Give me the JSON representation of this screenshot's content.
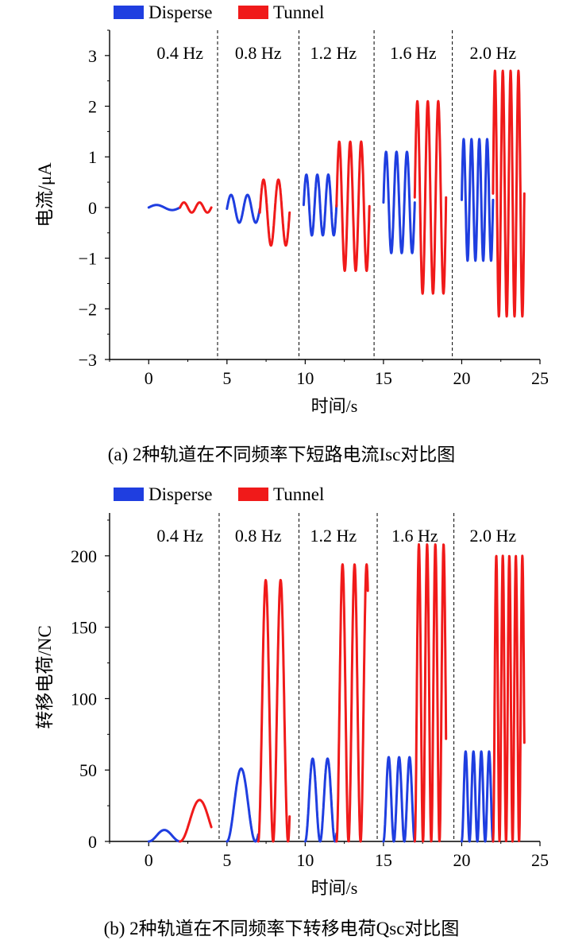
{
  "colors": {
    "disperse": "#1f3ee0",
    "tunnel": "#f01a1a",
    "axis": "#000000"
  },
  "charts": [
    {
      "caption": "(a) 2种轨道在不同频率下短路电流Isc对比图",
      "chart_data": {
        "type": "line",
        "ylabel": "电流/μA",
        "xlabel": "时间/s",
        "xlim": [
          -2.5,
          25
        ],
        "ylim": [
          -3,
          3.5
        ],
        "xticks": [
          0,
          5,
          10,
          15,
          20,
          25
        ],
        "yticks": [
          -3,
          -2,
          -1,
          0,
          1,
          2,
          3
        ],
        "yticklabels": [
          "−3",
          "−2",
          "−1",
          "0",
          "1",
          "2",
          "3"
        ],
        "legend": {
          "placement": "top-left",
          "entries": [
            "Disperse",
            "Tunnel"
          ]
        },
        "dividers": [
          4.4,
          9.6,
          14.4,
          19.4
        ],
        "frequency_labels": [
          {
            "text": "0.4 Hz",
            "x": 2.0
          },
          {
            "text": "0.8 Hz",
            "x": 7.0
          },
          {
            "text": "1.2 Hz",
            "x": 11.8
          },
          {
            "text": "1.6 Hz",
            "x": 16.9
          },
          {
            "text": "2.0 Hz",
            "x": 22.0
          }
        ],
        "series": [
          {
            "name": "Disperse",
            "color": "#1f3ee0",
            "segments": [
              {
                "kind": "ramp",
                "x0": 0.0,
                "x1": 2.0,
                "cycles": 1,
                "amp": 0.05,
                "offset": 0.0
              },
              {
                "kind": "sine",
                "x0": 5.0,
                "x1": 7.1,
                "cycles": 2,
                "max": 0.25,
                "min": -0.3
              },
              {
                "kind": "sine",
                "x0": 9.9,
                "x1": 12.0,
                "cycles": 3,
                "max": 0.65,
                "min": -0.55
              },
              {
                "kind": "sine",
                "x0": 15.0,
                "x1": 17.0,
                "cycles": 3,
                "max": 1.1,
                "min": -0.9
              },
              {
                "kind": "sine",
                "x0": 20.0,
                "x1": 22.0,
                "cycles": 4,
                "max": 1.35,
                "min": -1.05
              }
            ]
          },
          {
            "name": "Tunnel",
            "color": "#f01a1a",
            "segments": [
              {
                "kind": "ramp",
                "x0": 2.0,
                "x1": 4.0,
                "cycles": 2,
                "amp": 0.1,
                "offset": 0.0
              },
              {
                "kind": "sine",
                "x0": 7.1,
                "x1": 9.0,
                "cycles": 2,
                "max": 0.55,
                "min": -0.75
              },
              {
                "kind": "sine",
                "x0": 12.0,
                "x1": 14.1,
                "cycles": 3,
                "max": 1.3,
                "min": -1.25
              },
              {
                "kind": "sine",
                "x0": 17.0,
                "x1": 19.0,
                "cycles": 3,
                "max": 2.1,
                "min": -1.7
              },
              {
                "kind": "sine",
                "x0": 22.0,
                "x1": 24.0,
                "cycles": 4,
                "max": 2.7,
                "min": -2.15
              }
            ]
          }
        ]
      }
    },
    {
      "caption": "(b) 2种轨道在不同频率下转移电荷Qsc对比图",
      "chart_data": {
        "type": "line",
        "ylabel": "转移电荷/NC",
        "xlabel": "时间/s",
        "xlim": [
          -2.5,
          25
        ],
        "ylim": [
          0,
          230
        ],
        "xticks": [
          0,
          5,
          10,
          15,
          20,
          25
        ],
        "yticks": [
          0,
          50,
          100,
          150,
          200
        ],
        "yticklabels": [
          "0",
          "50",
          "100",
          "150",
          "200"
        ],
        "legend": {
          "placement": "top-left",
          "entries": [
            "Disperse",
            "Tunnel"
          ]
        },
        "dividers": [
          4.5,
          9.6,
          14.6,
          19.5
        ],
        "frequency_labels": [
          {
            "text": "0.4 Hz",
            "x": 2.0
          },
          {
            "text": "0.8 Hz",
            "x": 7.0
          },
          {
            "text": "1.2 Hz",
            "x": 11.8
          },
          {
            "text": "1.6 Hz",
            "x": 17.0
          },
          {
            "text": "2.0 Hz",
            "x": 22.0
          }
        ],
        "series": [
          {
            "name": "Disperse",
            "color": "#1f3ee0",
            "segments": [
              {
                "kind": "hump",
                "x0": 0.0,
                "x1": 2.0,
                "cycles": 1,
                "max": 8,
                "min": 0
              },
              {
                "kind": "hump",
                "x0": 5.0,
                "x1": 7.0,
                "cycles": 1.1,
                "max": 51,
                "min": 0
              },
              {
                "kind": "hump",
                "x0": 10.0,
                "x1": 12.0,
                "cycles": 2.1,
                "max": 58,
                "min": 0
              },
              {
                "kind": "hump",
                "x0": 15.0,
                "x1": 17.0,
                "cycles": 3,
                "max": 59,
                "min": 0
              },
              {
                "kind": "hump",
                "x0": 20.0,
                "x1": 22.0,
                "cycles": 4,
                "max": 63,
                "min": 0
              }
            ]
          },
          {
            "name": "Tunnel",
            "color": "#f01a1a",
            "segments": [
              {
                "kind": "hump",
                "x0": 2.0,
                "x1": 4.0,
                "cycles": 0.8,
                "max": 29,
                "min": 0
              },
              {
                "kind": "hump",
                "x0": 7.0,
                "x1": 9.0,
                "cycles": 2.1,
                "max": 183,
                "min": 0
              },
              {
                "kind": "hump",
                "x0": 12.0,
                "x1": 14.0,
                "cycles": 2.6,
                "max": 194,
                "min": 0
              },
              {
                "kind": "hump",
                "x0": 17.0,
                "x1": 19.0,
                "cycles": 3.8,
                "max": 208,
                "min": 0
              },
              {
                "kind": "hump",
                "x0": 22.0,
                "x1": 24.0,
                "cycles": 4.8,
                "max": 200,
                "min": 0
              }
            ]
          }
        ]
      }
    }
  ]
}
